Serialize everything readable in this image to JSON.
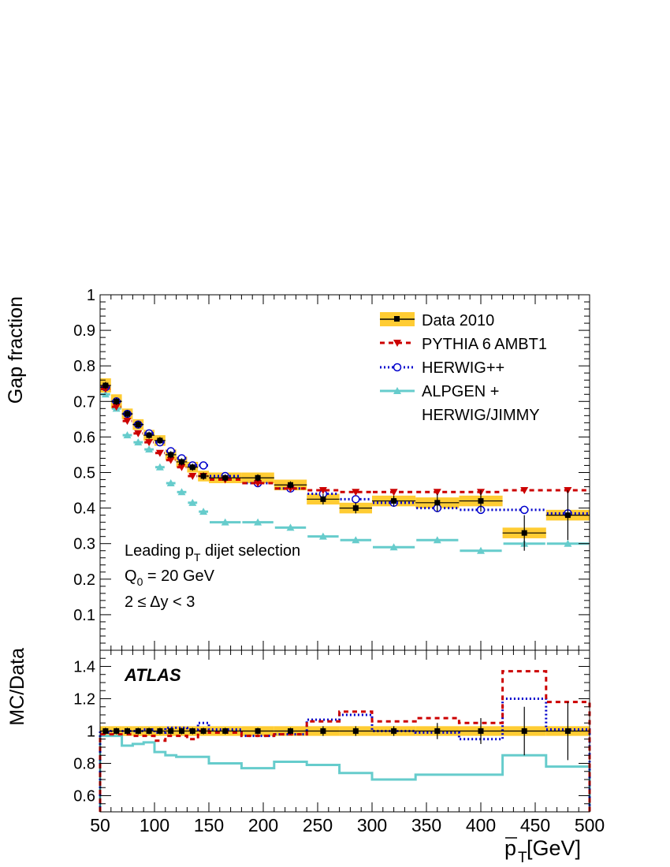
{
  "chart_data": [
    {
      "type": "line",
      "panel": "main",
      "ylabel": "Gap fraction",
      "xlim": [
        50,
        500
      ],
      "ylim": [
        0,
        1
      ],
      "yticks": [
        "0.1",
        "0.2",
        "0.3",
        "0.4",
        "0.5",
        "0.6",
        "0.7",
        "0.8",
        "0.9",
        "1"
      ],
      "yticks_values": [
        0.1,
        0.2,
        0.3,
        0.4,
        0.5,
        0.6,
        0.7,
        0.8,
        0.9,
        1.0
      ],
      "bins": [
        [
          50,
          60
        ],
        [
          60,
          70
        ],
        [
          70,
          80
        ],
        [
          80,
          90
        ],
        [
          90,
          100
        ],
        [
          100,
          110
        ],
        [
          110,
          120
        ],
        [
          120,
          130
        ],
        [
          130,
          140
        ],
        [
          140,
          150
        ],
        [
          150,
          180
        ],
        [
          180,
          210
        ],
        [
          210,
          240
        ],
        [
          240,
          270
        ],
        [
          270,
          300
        ],
        [
          300,
          340
        ],
        [
          340,
          380
        ],
        [
          380,
          420
        ],
        [
          420,
          460
        ],
        [
          460,
          500
        ]
      ],
      "series": [
        {
          "name": "Data 2010",
          "color": "#000000",
          "band_color": "#ffcc33",
          "marker": "square",
          "values": [
            0.745,
            0.7,
            0.665,
            0.635,
            0.605,
            0.59,
            0.55,
            0.53,
            0.515,
            0.49,
            0.485,
            0.485,
            0.465,
            0.425,
            0.4,
            0.42,
            0.415,
            0.42,
            0.33,
            0.38
          ],
          "syst": [
            0.02,
            0.02,
            0.015,
            0.015,
            0.015,
            0.015,
            0.015,
            0.015,
            0.015,
            0.015,
            0.015,
            0.015,
            0.015,
            0.015,
            0.015,
            0.015,
            0.015,
            0.015,
            0.015,
            0.015
          ],
          "stat": [
            0.01,
            0.01,
            0.01,
            0.01,
            0.01,
            0.01,
            0.01,
            0.01,
            0.01,
            0.01,
            0.01,
            0.01,
            0.01,
            0.015,
            0.015,
            0.015,
            0.025,
            0.03,
            0.05,
            0.07
          ]
        },
        {
          "name": "PYTHIA 6 AMBT1",
          "color": "#cc0000",
          "marker": "triangle-down",
          "dash": "6,5",
          "values": [
            0.735,
            0.685,
            0.645,
            0.61,
            0.585,
            0.555,
            0.535,
            0.515,
            0.49,
            0.49,
            0.48,
            0.47,
            0.455,
            0.45,
            0.445,
            0.445,
            0.445,
            0.445,
            0.45,
            0.45
          ]
        },
        {
          "name": "HERWIG++",
          "color": "#0000cc",
          "marker": "open-circle",
          "dash": "2,3",
          "values": [
            0.74,
            0.7,
            0.665,
            0.635,
            0.61,
            0.585,
            0.56,
            0.54,
            0.52,
            0.52,
            0.49,
            0.47,
            0.455,
            0.44,
            0.425,
            0.415,
            0.4,
            0.395,
            0.395,
            0.385
          ]
        },
        {
          "name": "ALPGEN + HERWIG/JIMMY",
          "color": "#66cccc",
          "marker": "triangle-up",
          "dash": "",
          "values": [
            0.72,
            0.68,
            0.605,
            0.585,
            0.565,
            0.515,
            0.47,
            0.445,
            0.415,
            0.39,
            0.36,
            0.36,
            0.345,
            0.32,
            0.31,
            0.29,
            0.31,
            0.28,
            0.3,
            0.3
          ]
        }
      ],
      "annotations": [
        "Leading p",
        "T",
        " dijet selection",
        "Q",
        "0",
        " = 20 GeV",
        "2 ≤ Δy < 3"
      ],
      "legend_position": "top-right"
    },
    {
      "type": "line",
      "panel": "ratio",
      "ylabel": "MC/Data",
      "xlabel_main": "p",
      "xlabel_sub": "T",
      "xlabel_unit": " [GeV]",
      "xlim": [
        50,
        500
      ],
      "ylim": [
        0.5,
        1.5
      ],
      "yticks": [
        "0.6",
        "0.8",
        "1",
        "1.2",
        "1.4"
      ],
      "yticks_values": [
        0.6,
        0.8,
        1.0,
        1.2,
        1.4
      ],
      "xticks": [
        "50",
        "100",
        "150",
        "200",
        "250",
        "300",
        "350",
        "400",
        "450",
        "500"
      ],
      "xticks_values": [
        50,
        100,
        150,
        200,
        250,
        300,
        350,
        400,
        450,
        500
      ],
      "label": "ATLAS",
      "ratio_bins": [
        [
          50,
          60
        ],
        [
          60,
          70
        ],
        [
          70,
          80
        ],
        [
          80,
          90
        ],
        [
          90,
          100
        ],
        [
          100,
          110
        ],
        [
          110,
          120
        ],
        [
          120,
          130
        ],
        [
          130,
          140
        ],
        [
          140,
          150
        ],
        [
          150,
          180
        ],
        [
          180,
          210
        ],
        [
          210,
          240
        ],
        [
          240,
          270
        ],
        [
          270,
          300
        ],
        [
          300,
          340
        ],
        [
          340,
          380
        ],
        [
          380,
          420
        ],
        [
          420,
          460
        ],
        [
          460,
          500
        ]
      ],
      "series": [
        {
          "name": "PYTHIA 6 AMBT1",
          "color": "#cc0000",
          "dash": "6,5",
          "values": [
            0.98,
            0.98,
            0.98,
            0.97,
            0.97,
            0.94,
            0.97,
            0.97,
            0.95,
            1.0,
            0.99,
            0.97,
            0.98,
            1.06,
            1.12,
            1.06,
            1.08,
            1.05,
            1.37,
            1.18
          ]
        },
        {
          "name": "HERWIG++",
          "color": "#0000cc",
          "dash": "2,3",
          "values": [
            0.99,
            1.0,
            1.0,
            1.0,
            1.01,
            0.99,
            1.02,
            1.02,
            1.01,
            1.05,
            1.01,
            0.97,
            0.98,
            1.07,
            1.1,
            1.0,
            0.99,
            0.95,
            1.2,
            1.01
          ]
        },
        {
          "name": "ALPGEN + HERWIG/JIMMY",
          "color": "#66cccc",
          "dash": "",
          "values": [
            0.97,
            0.97,
            0.91,
            0.92,
            0.93,
            0.87,
            0.85,
            0.84,
            0.84,
            0.84,
            0.8,
            0.77,
            0.81,
            0.79,
            0.74,
            0.7,
            0.73,
            0.73,
            0.85,
            0.78
          ]
        },
        {
          "name": "Data 2010",
          "color": "#000000",
          "values": [
            1,
            1,
            1,
            1,
            1,
            1,
            1,
            1,
            1,
            1,
            1,
            1,
            1,
            1,
            1,
            1,
            1,
            1,
            1,
            1
          ],
          "stat": [
            0.02,
            0.02,
            0.02,
            0.02,
            0.02,
            0.02,
            0.02,
            0.02,
            0.02,
            0.02,
            0.02,
            0.02,
            0.02,
            0.03,
            0.03,
            0.03,
            0.05,
            0.08,
            0.15,
            0.18
          ]
        }
      ]
    }
  ],
  "legend": [
    {
      "label": "Data 2010"
    },
    {
      "label": "PYTHIA 6 AMBT1"
    },
    {
      "label": "HERWIG++"
    },
    {
      "label": "ALPGEN +"
    },
    {
      "label": "HERWIG/JIMMY"
    }
  ]
}
